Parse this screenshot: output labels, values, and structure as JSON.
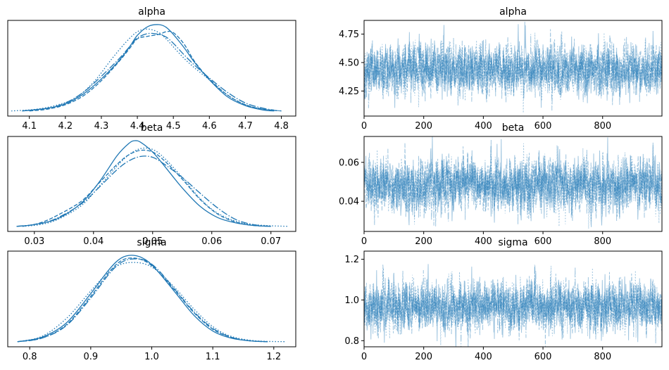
{
  "chart_data": {
    "type": "line",
    "figure": "trace plot",
    "line_color": "#1f77b4",
    "chains": 4,
    "chain_line_styles": [
      "solid",
      "dashed",
      "dashdot",
      "dotted"
    ],
    "draws": 1000,
    "panels": [
      {
        "id": "alpha",
        "kde": {
          "title": "alpha",
          "xlim": [
            4.04,
            4.84
          ],
          "xticks": [
            4.1,
            4.2,
            4.3,
            4.4,
            4.5,
            4.6,
            4.7,
            4.8
          ],
          "xtick_labels": [
            "4.1",
            "4.2",
            "4.3",
            "4.4",
            "4.5",
            "4.6",
            "4.7",
            "4.8"
          ],
          "chains": [
            {
              "style": "solid",
              "x": [
                4.08,
                4.15,
                4.2,
                4.25,
                4.3,
                4.35,
                4.38,
                4.4,
                4.43,
                4.46,
                4.48,
                4.5,
                4.53,
                4.56,
                4.6,
                4.65,
                4.7,
                4.75,
                4.78
              ],
              "density": [
                0.01,
                0.04,
                0.09,
                0.2,
                0.37,
                0.58,
                0.74,
                0.86,
                0.96,
                0.98,
                0.95,
                0.87,
                0.72,
                0.55,
                0.36,
                0.17,
                0.07,
                0.02,
                0.01
              ]
            },
            {
              "style": "dashed",
              "x": [
                4.1,
                4.15,
                4.2,
                4.25,
                4.3,
                4.35,
                4.38,
                4.4,
                4.43,
                4.46,
                4.48,
                4.5,
                4.53,
                4.56,
                4.6,
                4.65,
                4.7,
                4.75,
                4.8
              ],
              "density": [
                0.01,
                0.03,
                0.08,
                0.18,
                0.35,
                0.57,
                0.72,
                0.82,
                0.85,
                0.87,
                0.9,
                0.89,
                0.76,
                0.56,
                0.37,
                0.19,
                0.08,
                0.03,
                0.01
              ]
            },
            {
              "style": "dashdot",
              "x": [
                4.08,
                4.15,
                4.2,
                4.25,
                4.3,
                4.35,
                4.38,
                4.4,
                4.43,
                4.46,
                4.48,
                4.5,
                4.53,
                4.56,
                4.6,
                4.65,
                4.7,
                4.75,
                4.78
              ],
              "density": [
                0.01,
                0.04,
                0.1,
                0.22,
                0.4,
                0.6,
                0.74,
                0.83,
                0.88,
                0.87,
                0.84,
                0.77,
                0.64,
                0.52,
                0.38,
                0.22,
                0.1,
                0.04,
                0.02
              ]
            },
            {
              "style": "dotted",
              "x": [
                4.05,
                4.12,
                4.18,
                4.23,
                4.28,
                4.33,
                4.37,
                4.4,
                4.43,
                4.46,
                4.48,
                4.5,
                4.53,
                4.56,
                4.6,
                4.65,
                4.7,
                4.75,
                4.8
              ],
              "density": [
                0.01,
                0.03,
                0.08,
                0.16,
                0.34,
                0.6,
                0.79,
                0.9,
                0.93,
                0.89,
                0.82,
                0.73,
                0.6,
                0.49,
                0.36,
                0.19,
                0.08,
                0.03,
                0.01
              ]
            }
          ]
        },
        "trace": {
          "title": "alpha",
          "xlim": [
            0,
            999
          ],
          "ylim": [
            4.03,
            4.87
          ],
          "xticks": [
            0,
            200,
            400,
            600,
            800
          ],
          "xtick_labels": [
            "0",
            "200",
            "400",
            "600",
            "800"
          ],
          "yticks": [
            4.25,
            4.5,
            4.75
          ],
          "ytick_labels": [
            "4.25",
            "4.50",
            "4.75"
          ],
          "mean": 4.44,
          "sd": 0.11,
          "seed": 11
        }
      },
      {
        "id": "beta",
        "kde": {
          "title": "beta",
          "xlim": [
            0.0255,
            0.0742
          ],
          "xticks": [
            0.03,
            0.04,
            0.05,
            0.06,
            0.07
          ],
          "xtick_labels": [
            "0.03",
            "0.04",
            "0.05",
            "0.06",
            "0.07"
          ],
          "chains": [
            {
              "style": "solid",
              "x": [
                0.027,
                0.03,
                0.034,
                0.038,
                0.041,
                0.044,
                0.046,
                0.047,
                0.048,
                0.05,
                0.052,
                0.055,
                0.058,
                0.061,
                0.064,
                0.067,
                0.07
              ],
              "density": [
                0.01,
                0.03,
                0.1,
                0.28,
                0.52,
                0.82,
                0.96,
                0.99,
                0.97,
                0.86,
                0.7,
                0.45,
                0.24,
                0.11,
                0.05,
                0.02,
                0.01
              ]
            },
            {
              "style": "dashed",
              "x": [
                0.028,
                0.031,
                0.034,
                0.038,
                0.041,
                0.044,
                0.046,
                0.048,
                0.05,
                0.052,
                0.055,
                0.058,
                0.061,
                0.064,
                0.067,
                0.07
              ],
              "density": [
                0.01,
                0.05,
                0.14,
                0.3,
                0.51,
                0.72,
                0.83,
                0.88,
                0.86,
                0.76,
                0.55,
                0.32,
                0.15,
                0.06,
                0.02,
                0.01
              ]
            },
            {
              "style": "dashdot",
              "x": [
                0.027,
                0.031,
                0.034,
                0.038,
                0.041,
                0.044,
                0.046,
                0.048,
                0.05,
                0.052,
                0.055,
                0.058,
                0.061,
                0.064,
                0.067,
                0.07
              ],
              "density": [
                0.01,
                0.04,
                0.11,
                0.27,
                0.46,
                0.66,
                0.76,
                0.81,
                0.8,
                0.72,
                0.57,
                0.39,
                0.22,
                0.09,
                0.03,
                0.01
              ]
            },
            {
              "style": "dotted",
              "x": [
                0.028,
                0.031,
                0.034,
                0.038,
                0.041,
                0.044,
                0.046,
                0.048,
                0.05,
                0.052,
                0.055,
                0.058,
                0.061,
                0.065,
                0.069,
                0.073
              ],
              "density": [
                0.01,
                0.03,
                0.09,
                0.25,
                0.47,
                0.7,
                0.83,
                0.9,
                0.89,
                0.79,
                0.57,
                0.33,
                0.16,
                0.05,
                0.02,
                0.01
              ]
            }
          ]
        },
        "trace": {
          "title": "beta",
          "xlim": [
            0,
            999
          ],
          "ylim": [
            0.0245,
            0.0733
          ],
          "xticks": [
            0,
            200,
            400,
            600,
            800
          ],
          "xtick_labels": [
            "0",
            "200",
            "400",
            "600",
            "800"
          ],
          "yticks": [
            0.04,
            0.06
          ],
          "ytick_labels": [
            "0.04",
            "0.06"
          ],
          "mean": 0.048,
          "sd": 0.0068,
          "seed": 23
        }
      },
      {
        "id": "sigma",
        "kde": {
          "title": "sigma",
          "xlim": [
            0.764,
            1.236
          ],
          "xticks": [
            0.8,
            0.9,
            1.0,
            1.1,
            1.2
          ],
          "xtick_labels": [
            "0.8",
            "0.9",
            "1.0",
            "1.1",
            "1.2"
          ],
          "chains": [
            {
              "style": "solid",
              "x": [
                0.78,
                0.82,
                0.86,
                0.9,
                0.93,
                0.95,
                0.97,
                0.99,
                1.01,
                1.04,
                1.07,
                1.1,
                1.13,
                1.16,
                1.19
              ],
              "density": [
                0.01,
                0.06,
                0.22,
                0.55,
                0.82,
                0.95,
                0.98,
                0.93,
                0.8,
                0.55,
                0.3,
                0.13,
                0.05,
                0.02,
                0.01
              ]
            },
            {
              "style": "dashed",
              "x": [
                0.78,
                0.82,
                0.86,
                0.9,
                0.93,
                0.95,
                0.97,
                0.99,
                1.01,
                1.04,
                1.07,
                1.1,
                1.13,
                1.16,
                1.19
              ],
              "density": [
                0.01,
                0.05,
                0.2,
                0.52,
                0.79,
                0.92,
                0.95,
                0.91,
                0.8,
                0.57,
                0.33,
                0.15,
                0.06,
                0.02,
                0.01
              ]
            },
            {
              "style": "dashdot",
              "x": [
                0.78,
                0.82,
                0.86,
                0.9,
                0.93,
                0.95,
                0.97,
                0.99,
                1.01,
                1.04,
                1.07,
                1.1,
                1.13,
                1.16,
                1.19
              ],
              "density": [
                0.01,
                0.05,
                0.19,
                0.5,
                0.77,
                0.9,
                0.94,
                0.92,
                0.82,
                0.58,
                0.34,
                0.16,
                0.06,
                0.02,
                0.01
              ]
            },
            {
              "style": "dotted",
              "x": [
                0.78,
                0.82,
                0.86,
                0.9,
                0.93,
                0.95,
                0.97,
                0.99,
                1.01,
                1.04,
                1.07,
                1.1,
                1.13,
                1.17,
                1.22
              ],
              "density": [
                0.01,
                0.07,
                0.27,
                0.58,
                0.8,
                0.88,
                0.9,
                0.88,
                0.8,
                0.6,
                0.37,
                0.18,
                0.07,
                0.02,
                0.01
              ]
            }
          ]
        },
        "trace": {
          "title": "sigma",
          "xlim": [
            0,
            999
          ],
          "ylim": [
            0.77,
            1.24
          ],
          "xticks": [
            0,
            200,
            400,
            600,
            800
          ],
          "xtick_labels": [
            "0",
            "200",
            "400",
            "600",
            "800"
          ],
          "yticks": [
            0.8,
            1.0,
            1.2
          ],
          "ytick_labels": [
            "0.8",
            "1.0",
            "1.2"
          ],
          "mean": 0.97,
          "sd": 0.062,
          "seed": 37
        }
      }
    ]
  }
}
